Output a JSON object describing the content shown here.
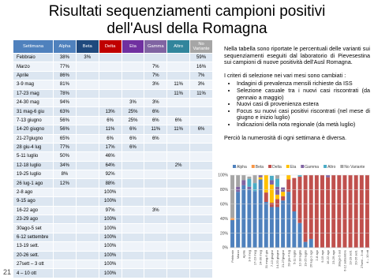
{
  "title": [
    "Risultati sequenziamenti campioni positivi",
    "dell'Ausl della Romagna"
  ],
  "page_number": "21",
  "table": {
    "header": [
      "Settimana",
      "Alpha",
      "Beta",
      "Delta",
      "Eta",
      "Gamma",
      "Altro",
      "No Variante"
    ],
    "rows": [
      [
        "Febbraio",
        "38%",
        "3%",
        null,
        null,
        null,
        null,
        "59%"
      ],
      [
        "Marzo",
        "77%",
        null,
        null,
        null,
        "7%",
        null,
        "16%"
      ],
      [
        "Aprile",
        "86%",
        null,
        null,
        null,
        "7%",
        null,
        "7%"
      ],
      [
        "3-9 mag",
        "81%",
        null,
        null,
        null,
        "3%",
        "11%",
        "3%"
      ],
      [
        "17-23 mag",
        "78%",
        null,
        null,
        null,
        null,
        "11%",
        "11%"
      ],
      [
        "24-30 mag",
        "94%",
        null,
        null,
        "3%",
        "3%",
        null,
        null
      ],
      [
        "31 mag-6 giu",
        "63%",
        null,
        "13%",
        "25%",
        "6%",
        null,
        null
      ],
      [
        "7-13 giugno",
        "56%",
        null,
        "6%",
        "25%",
        "6%",
        "6%",
        null
      ],
      [
        "14-20 giugno",
        "56%",
        null,
        "11%",
        "6%",
        "11%",
        "11%",
        "6%"
      ],
      [
        "21-27giugno",
        "65%",
        null,
        "6%",
        "6%",
        "6%",
        null,
        null
      ],
      [
        "28 giu-4 lug",
        "77%",
        null,
        "17%",
        "6%",
        null,
        null,
        null
      ],
      [
        "5-11 luglio",
        "50%",
        null,
        "46%",
        null,
        null,
        null,
        null
      ],
      [
        "12-18 luglio",
        "34%",
        null,
        "64%",
        null,
        null,
        "2%",
        null
      ],
      [
        "19-25 luglio",
        "8%",
        null,
        "92%",
        null,
        null,
        null,
        null
      ],
      [
        "26 lug-1 ago",
        "12%",
        null,
        "88%",
        null,
        null,
        null,
        null
      ],
      [
        "2-8 ago",
        null,
        null,
        "100%",
        null,
        null,
        null,
        null
      ],
      [
        "9-15 ago",
        null,
        null,
        "100%",
        null,
        null,
        null,
        null
      ],
      [
        "16-22 ago",
        null,
        null,
        "97%",
        null,
        "3%",
        null,
        null
      ],
      [
        "23-29 ago",
        null,
        null,
        "100%",
        null,
        null,
        null,
        null
      ],
      [
        "30ago-5 set",
        null,
        null,
        "100%",
        null,
        null,
        null,
        null
      ],
      [
        "6-12 settembre",
        null,
        null,
        "100%",
        null,
        null,
        null,
        null
      ],
      [
        "13-19 sett.",
        null,
        null,
        "100%",
        null,
        null,
        null,
        null
      ],
      [
        "20-26 sett.",
        null,
        null,
        "100%",
        null,
        null,
        null,
        null
      ],
      [
        "27sett – 3 ott",
        null,
        null,
        "100%",
        null,
        null,
        null,
        null
      ],
      [
        "4 – 10 ott",
        null,
        null,
        "100%",
        null,
        null,
        null,
        null
      ]
    ]
  },
  "text": {
    "intro": "Nella tabella sono riportate le percentuali delle varianti sui sequenziamenti eseguiti dal laboratorio di Pievesestina sui campioni di nuove positività dell'Ausl Romagna.",
    "criteria": "I criteri di selezione nei vari mesi sono cambiati :",
    "bullets": [
      "Indagini di prevalenza mensili richieste da ISS",
      "Selezione casuale tra i nuovi casi riscontrati (da gennaio a maggio)",
      "Nuovi casi di provenienza estera",
      "Focus su nuovi casi positivi riscontrati (nel mese di giugno e inizio luglio)",
      "Indicazioni della nota regionale (da metà luglio)"
    ],
    "note": "Perciò la numerosità di ogni settimana è diversa."
  },
  "chart_data": {
    "type": "stacked_bar",
    "categories": [
      "Febbraio",
      "Marzo",
      "Aprile",
      "3-9 mag",
      "17-23 mag",
      "24-30 mag",
      "31 mag-6 giu",
      "7-13 giugno",
      "14-20 giugno",
      "21-27giugno",
      "28 giu-4 lug",
      "5-11 luglio",
      "12-18 luglio",
      "19-25 luglio",
      "26 lug-1 ago",
      "2-8 ago",
      "9-15 ago",
      "16-22 ago",
      "23-29 ago",
      "30ago-5 set",
      "6-12 settembre",
      "13-19 sett.",
      "20-26 sett.",
      "27sett – 3 ott",
      "4 – 10 ott"
    ],
    "series": [
      {
        "name": "Alpha",
        "color": "#4f81bd",
        "values": [
          38,
          77,
          86,
          81,
          78,
          94,
          63,
          56,
          56,
          65,
          77,
          50,
          34,
          8,
          12,
          null,
          null,
          null,
          null,
          null,
          null,
          null,
          null,
          null,
          null
        ]
      },
      {
        "name": "Beta",
        "color": "#f79646",
        "values": [
          3,
          null,
          null,
          null,
          null,
          null,
          null,
          null,
          null,
          null,
          null,
          null,
          null,
          null,
          null,
          null,
          null,
          null,
          null,
          null,
          null,
          null,
          null,
          null,
          null
        ]
      },
      {
        "name": "Delta",
        "color": "#c0504d",
        "values": [
          null,
          null,
          null,
          null,
          null,
          null,
          13,
          6,
          11,
          6,
          17,
          46,
          64,
          92,
          88,
          100,
          100,
          97,
          100,
          100,
          100,
          100,
          100,
          100,
          100
        ]
      },
      {
        "name": "Eta",
        "color": "#ffc000",
        "values": [
          null,
          null,
          null,
          null,
          null,
          3,
          25,
          25,
          6,
          6,
          6,
          null,
          null,
          null,
          null,
          null,
          null,
          null,
          null,
          null,
          null,
          null,
          null,
          null,
          null
        ]
      },
      {
        "name": "Gamma",
        "color": "#8064a2",
        "values": [
          null,
          7,
          7,
          3,
          null,
          3,
          6,
          6,
          11,
          6,
          null,
          null,
          null,
          null,
          null,
          null,
          null,
          3,
          null,
          null,
          null,
          null,
          null,
          null,
          null
        ]
      },
      {
        "name": "Altro",
        "color": "#4bacc6",
        "values": [
          null,
          null,
          null,
          11,
          11,
          null,
          null,
          6,
          11,
          null,
          null,
          null,
          2,
          null,
          null,
          null,
          null,
          null,
          null,
          null,
          null,
          null,
          null,
          null,
          null
        ]
      },
      {
        "name": "No Variante",
        "color": "#a5a5a5",
        "values": [
          59,
          16,
          7,
          3,
          11,
          null,
          null,
          null,
          6,
          null,
          null,
          null,
          null,
          null,
          null,
          null,
          null,
          null,
          null,
          null,
          null,
          null,
          null,
          null,
          null
        ]
      }
    ],
    "ylim": [
      0,
      100
    ],
    "yticks": [
      {
        "value": 0,
        "label": "0%"
      },
      {
        "value": 20,
        "label": "20%"
      },
      {
        "value": 40,
        "label": "40%"
      },
      {
        "value": 60,
        "label": "60%"
      },
      {
        "value": 80,
        "label": "80%"
      },
      {
        "value": 100,
        "label": "100%"
      }
    ],
    "legend": "top"
  }
}
